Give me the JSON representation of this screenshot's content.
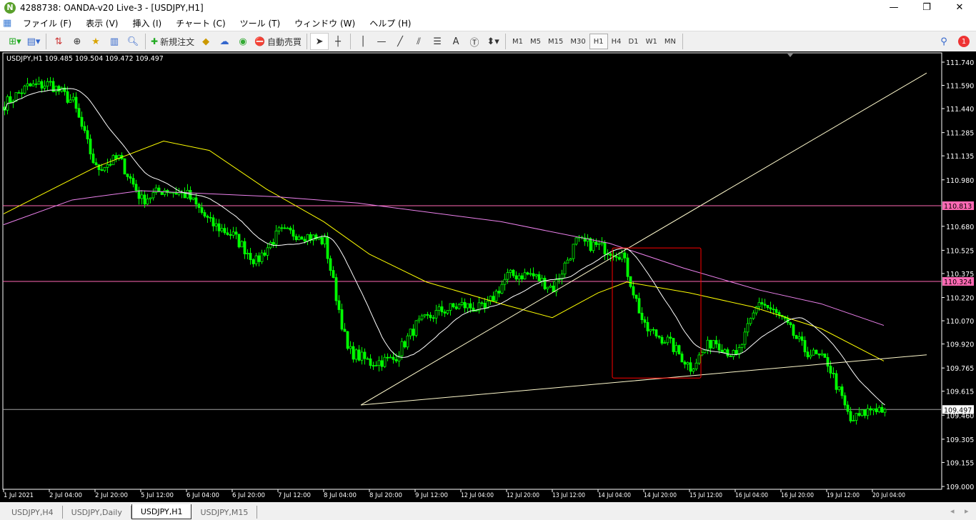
{
  "window": {
    "title": "4288738: OANDA-v20 Live-3 - [USDJPY,H1]",
    "minimize": "—",
    "maximize": "❐",
    "close": "✕"
  },
  "menu": [
    "ファイル (F)",
    "表示 (V)",
    "挿入 (I)",
    "チャート (C)",
    "ツール (T)",
    "ウィンドウ (W)",
    "ヘルプ (H)"
  ],
  "toolbar": {
    "new_order": "新規注文",
    "auto_trade": "自動売買",
    "text_tool": "A",
    "timeframes": [
      "M1",
      "M5",
      "M15",
      "M30",
      "H1",
      "H4",
      "D1",
      "W1",
      "MN"
    ],
    "active_timeframe": "H1",
    "notification_count": "1"
  },
  "chart": {
    "symbol_info": "USDJPY,H1  109.485 109.504 109.472 109.497"
  },
  "colors": {
    "candle": "#00ff00",
    "ma_fast": "#ffffff",
    "ma_mid": "#ffff00",
    "ma_slow": "#ee82ee",
    "hline": "#ff69b4",
    "trendline": "#fffacd",
    "rectangle": "#ff0000",
    "bid_line": "#a0a0a0"
  },
  "chart_data": {
    "type": "candlestick",
    "symbol": "USDJPY",
    "timeframe": "H1",
    "ylim": [
      109.0,
      111.8
    ],
    "price_ticks": [
      "111.740",
      "111.590",
      "111.440",
      "111.285",
      "111.135",
      "110.980",
      "110.680",
      "110.525",
      "110.375",
      "110.220",
      "110.070",
      "109.920",
      "109.765",
      "109.615",
      "109.460",
      "109.305",
      "109.155",
      "109.000"
    ],
    "time_ticks": [
      "1 Jul 2021",
      "2 Jul 04:00",
      "2 Jul 20:00",
      "5 Jul 12:00",
      "6 Jul 04:00",
      "6 Jul 20:00",
      "7 Jul 12:00",
      "8 Jul 04:00",
      "8 Jul 20:00",
      "9 Jul 12:00",
      "12 Jul 04:00",
      "12 Jul 20:00",
      "13 Jul 12:00",
      "14 Jul 04:00",
      "14 Jul 20:00",
      "15 Jul 12:00",
      "16 Jul 04:00",
      "16 Jul 20:00",
      "19 Jul 12:00",
      "20 Jul 04:00"
    ],
    "close_samples": [
      {
        "t": "1 Jul 12:00",
        "c": 111.47
      },
      {
        "t": "1 Jul 20:00",
        "c": 111.58
      },
      {
        "t": "2 Jul 04:00",
        "c": 111.6
      },
      {
        "t": "2 Jul 12:00",
        "c": 111.48
      },
      {
        "t": "2 Jul 20:00",
        "c": 111.05
      },
      {
        "t": "5 Jul 04:00",
        "c": 111.12
      },
      {
        "t": "5 Jul 12:00",
        "c": 110.85
      },
      {
        "t": "5 Jul 20:00",
        "c": 110.92
      },
      {
        "t": "6 Jul 04:00",
        "c": 110.88
      },
      {
        "t": "6 Jul 12:00",
        "c": 110.7
      },
      {
        "t": "6 Jul 20:00",
        "c": 110.62
      },
      {
        "t": "7 Jul 04:00",
        "c": 110.45
      },
      {
        "t": "7 Jul 12:00",
        "c": 110.64
      },
      {
        "t": "7 Jul 20:00",
        "c": 110.63
      },
      {
        "t": "8 Jul 04:00",
        "c": 110.58
      },
      {
        "t": "8 Jul 12:00",
        "c": 109.88
      },
      {
        "t": "8 Jul 20:00",
        "c": 109.8
      },
      {
        "t": "9 Jul 04:00",
        "c": 109.82
      },
      {
        "t": "9 Jul 12:00",
        "c": 110.04
      },
      {
        "t": "9 Jul 20:00",
        "c": 110.13
      },
      {
        "t": "12 Jul 04:00",
        "c": 110.17
      },
      {
        "t": "12 Jul 12:00",
        "c": 110.14
      },
      {
        "t": "12 Jul 20:00",
        "c": 110.36
      },
      {
        "t": "13 Jul 04:00",
        "c": 110.37
      },
      {
        "t": "13 Jul 12:00",
        "c": 110.28
      },
      {
        "t": "13 Jul 20:00",
        "c": 110.58
      },
      {
        "t": "14 Jul 04:00",
        "c": 110.55
      },
      {
        "t": "14 Jul 12:00",
        "c": 110.5
      },
      {
        "t": "14 Jul 20:00",
        "c": 110.02
      },
      {
        "t": "15 Jul 04:00",
        "c": 109.94
      },
      {
        "t": "15 Jul 12:00",
        "c": 109.77
      },
      {
        "t": "15 Jul 20:00",
        "c": 109.95
      },
      {
        "t": "16 Jul 04:00",
        "c": 109.83
      },
      {
        "t": "16 Jul 12:00",
        "c": 110.2
      },
      {
        "t": "16 Jul 20:00",
        "c": 110.08
      },
      {
        "t": "19 Jul 04:00",
        "c": 109.88
      },
      {
        "t": "19 Jul 12:00",
        "c": 109.8
      },
      {
        "t": "19 Jul 20:00",
        "c": 109.42
      },
      {
        "t": "20 Jul 04:00",
        "c": 109.51
      },
      {
        "t": "20 Jul 08:00",
        "c": 109.497
      }
    ],
    "moving_averages": [
      {
        "color": "#ffff00",
        "points": [
          {
            "t": "1 Jul 12:00",
            "v": 110.76
          },
          {
            "t": "2 Jul 20:00",
            "v": 111.06
          },
          {
            "t": "5 Jul 20:00",
            "v": 111.23
          },
          {
            "t": "6 Jul 12:00",
            "v": 111.17
          },
          {
            "t": "7 Jul 08:00",
            "v": 110.92
          },
          {
            "t": "8 Jul 04:00",
            "v": 110.71
          },
          {
            "t": "8 Jul 20:00",
            "v": 110.5
          },
          {
            "t": "9 Jul 16:00",
            "v": 110.32
          },
          {
            "t": "12 Jul 18:00",
            "v": 110.18
          },
          {
            "t": "13 Jul 12:00",
            "v": 110.09
          },
          {
            "t": "14 Jul 04:00",
            "v": 110.25
          },
          {
            "t": "14 Jul 14:00",
            "v": 110.32
          },
          {
            "t": "15 Jul 12:00",
            "v": 110.25
          },
          {
            "t": "16 Jul 10:00",
            "v": 110.16
          },
          {
            "t": "19 Jul 10:00",
            "v": 110.02
          },
          {
            "t": "20 Jul 08:00",
            "v": 109.81
          }
        ]
      },
      {
        "color": "#ee82ee",
        "points": [
          {
            "t": "1 Jul 12:00",
            "v": 110.69
          },
          {
            "t": "2 Jul 12:00",
            "v": 110.85
          },
          {
            "t": "5 Jul 12:00",
            "v": 110.91
          },
          {
            "t": "7 Jul 12:00",
            "v": 110.87
          },
          {
            "t": "8 Jul 16:00",
            "v": 110.83
          },
          {
            "t": "12 Jul 18:00",
            "v": 110.71
          },
          {
            "t": "14 Jul 08:00",
            "v": 110.57
          },
          {
            "t": "15 Jul 10:00",
            "v": 110.41
          },
          {
            "t": "16 Jul 12:00",
            "v": 110.27
          },
          {
            "t": "19 Jul 10:00",
            "v": 110.18
          },
          {
            "t": "20 Jul 08:00",
            "v": 110.04
          }
        ]
      },
      {
        "color": "#ffffff",
        "period": 20
      }
    ],
    "horizontal_lines": [
      {
        "price": 110.813,
        "label": "110.813",
        "color": "#ff69b4"
      },
      {
        "price": 110.324,
        "label": "110.324",
        "color": "#ff69b4"
      },
      {
        "price": 109.497,
        "label": "109.497",
        "color": "#a0a0a0",
        "bid": true
      }
    ],
    "trendlines": [
      {
        "from": {
          "t": "8 Jul 17:00",
          "p": 109.526
        },
        "to": {
          "t": "20 Jul 23:00",
          "p": 109.85
        }
      },
      {
        "from": {
          "t": "8 Jul 17:00",
          "p": 109.526
        },
        "to": {
          "t": "20 Jul 23:00",
          "p": 111.67
        }
      }
    ],
    "rectangle": {
      "from": {
        "t": "14 Jul 09:00",
        "p": 110.54
      },
      "to": {
        "t": "15 Jul 16:00",
        "p": 109.7
      },
      "color": "#ff0000"
    }
  },
  "tabs": [
    {
      "label": "USDJPY,H4"
    },
    {
      "label": "USDJPY,Daily"
    },
    {
      "label": "USDJPY,H1",
      "active": true
    },
    {
      "label": "USDJPY,M15"
    }
  ]
}
